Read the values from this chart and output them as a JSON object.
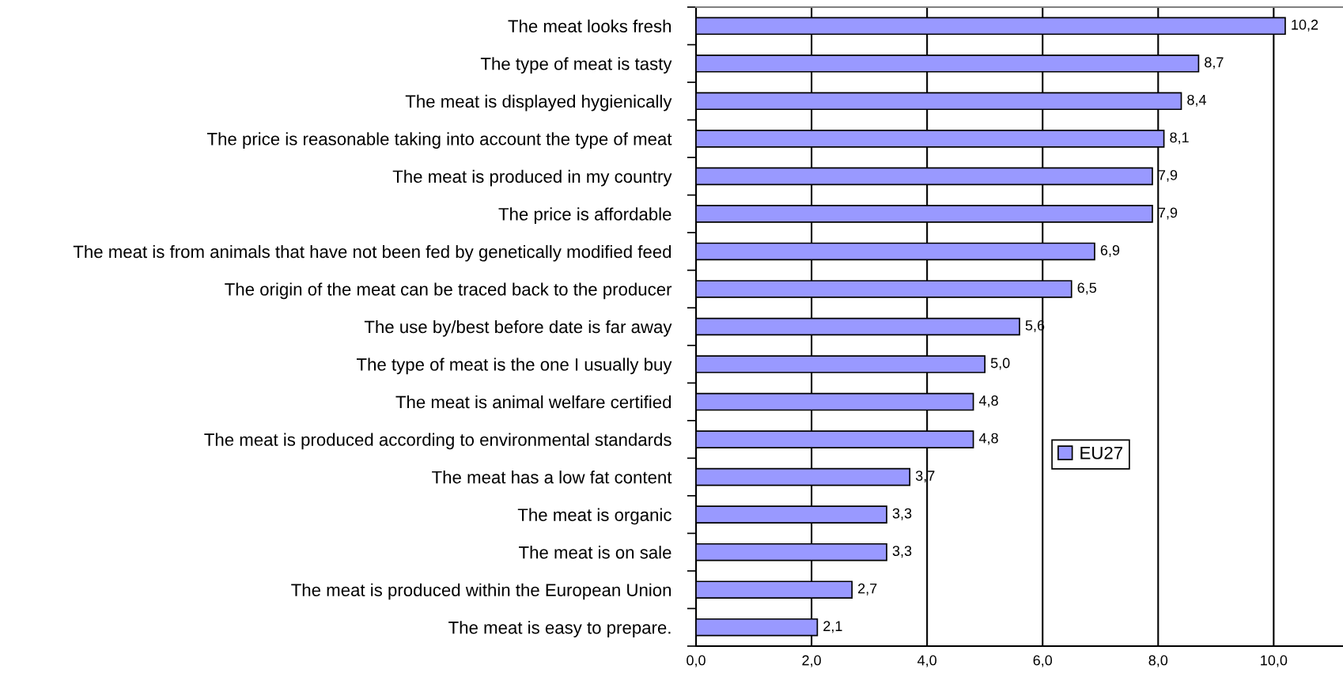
{
  "chart_data": {
    "type": "bar",
    "orientation": "horizontal",
    "categories": [
      "The meat looks fresh",
      "The type of meat is tasty",
      "The meat is displayed hygienically",
      "The price is reasonable taking into account the type of meat",
      "The meat is produced in my country",
      "The price is affordable",
      "The meat is from animals that have not been fed by genetically modified feed",
      "The origin of the meat can be traced back to the producer",
      "The use by/best before date is far away",
      "The type of meat is the one I usually buy",
      "The meat is animal welfare certified",
      "The meat is produced according to environmental standards",
      "The meat has a low fat content",
      "The meat is organic",
      "The meat is on sale",
      "The meat is produced within the European Union",
      "The meat is easy to prepare."
    ],
    "series": [
      {
        "name": "EU27",
        "color": "#9999ff",
        "values": [
          10.2,
          8.7,
          8.4,
          8.1,
          7.9,
          7.9,
          6.9,
          6.5,
          5.6,
          5.0,
          4.8,
          4.8,
          3.7,
          3.3,
          3.3,
          2.7,
          2.1
        ],
        "value_labels": [
          "10,2",
          "8,7",
          "8,4",
          "8,1",
          "7,9",
          "7,9",
          "6,9",
          "6,5",
          "5,6",
          "5,0",
          "4,8",
          "4,8",
          "3,7",
          "3,3",
          "3,3",
          "2,7",
          "2,1"
        ]
      }
    ],
    "xlim": [
      0,
      11.2
    ],
    "xticks": [
      {
        "value": 0,
        "label": "0,0"
      },
      {
        "value": 2,
        "label": "2,0"
      },
      {
        "value": 4,
        "label": "4,0"
      },
      {
        "value": 6,
        "label": "6,0"
      },
      {
        "value": 8,
        "label": "8,0"
      },
      {
        "value": 10,
        "label": "10,0"
      }
    ],
    "grid": "x",
    "legend": "right"
  }
}
